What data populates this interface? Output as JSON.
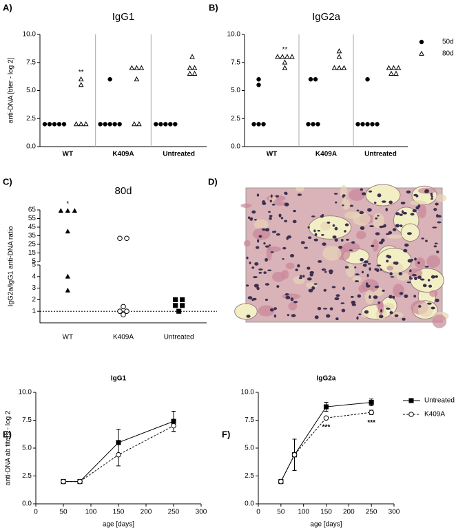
{
  "chart_data": [
    {
      "type": "dot",
      "panel_label": "A)",
      "title": "IgG1",
      "ylabel": "anti-DNA [titer - log 2]",
      "categories": [
        "WT",
        "K409A",
        "Untreated"
      ],
      "series": [
        {
          "name": "50d",
          "color": "#000000",
          "marker": "circle",
          "values": [
            [
              2,
              2,
              2,
              2,
              2
            ],
            [
              6,
              2,
              2,
              2,
              2,
              2
            ],
            [
              2,
              2,
              2,
              2,
              2
            ]
          ]
        },
        {
          "name": "80d",
          "color": "#000000",
          "marker": "triangle-open",
          "values": [
            [
              6,
              5.5,
              2,
              2,
              2
            ],
            [
              7,
              7,
              7,
              6,
              2,
              2
            ],
            [
              8,
              7,
              7,
              6.5,
              6.5
            ]
          ]
        }
      ],
      "ylim": [
        0,
        10
      ],
      "yticks": [
        {
          "value": 0,
          "label": "0.0"
        },
        {
          "value": 2.5,
          "label": "2.5"
        },
        {
          "value": 5,
          "label": "5.0"
        },
        {
          "value": 7.5,
          "label": "7.5"
        },
        {
          "value": 10,
          "label": "10.0"
        }
      ],
      "annotations": [
        {
          "text": "**",
          "category": "WT",
          "series": "80d"
        }
      ],
      "legend": false
    },
    {
      "type": "dot",
      "panel_label": "B)",
      "title": "IgG2a",
      "categories": [
        "WT",
        "K409A",
        "Untreated"
      ],
      "series": [
        {
          "name": "50d",
          "color": "#000000",
          "marker": "circle",
          "values": [
            [
              6,
              5.5,
              2,
              2,
              2
            ],
            [
              6,
              6,
              2,
              2,
              2
            ],
            [
              6,
              2,
              2,
              2,
              2,
              2
            ]
          ]
        },
        {
          "name": "80d",
          "color": "#000000",
          "marker": "triangle-open",
          "values": [
            [
              8,
              8,
              8,
              8,
              7.5,
              7
            ],
            [
              8.5,
              8,
              7,
              7,
              7
            ],
            [
              7,
              7,
              7,
              6.5,
              6.5
            ]
          ]
        }
      ],
      "ylim": [
        0,
        10
      ],
      "yticks": [
        {
          "value": 0,
          "label": "0.0"
        },
        {
          "value": 2.5,
          "label": "2.5"
        },
        {
          "value": 5,
          "label": "5.0"
        },
        {
          "value": 7.5,
          "label": "7.5"
        },
        {
          "value": 10,
          "label": "10.0"
        }
      ],
      "annotations": [
        {
          "text": "**",
          "category": "WT",
          "series": "80d"
        }
      ],
      "legend": true
    },
    {
      "type": "ratio",
      "panel_label": "C)",
      "title": "80d",
      "ylabel": "IgG2a/IgG1 anti-DNA ratio",
      "categories": [
        "WT",
        "K409A",
        "Untreated"
      ],
      "markers": [
        "triangle",
        "circle-open",
        "square"
      ],
      "color": "#000000",
      "values": [
        [
          64,
          64,
          64,
          40,
          4,
          2.8
        ],
        [
          32,
          32,
          1.4,
          1,
          1,
          0.7
        ],
        [
          2,
          2,
          1.5,
          1.5,
          1
        ]
      ],
      "ylim": [
        0,
        5
      ],
      "yticks": [
        1,
        2,
        3,
        4,
        5
      ],
      "ylim_upper": [
        5,
        65
      ],
      "yticks_upper": [
        5,
        15,
        25,
        35,
        45,
        55,
        65
      ],
      "hline": 1,
      "annotations": [
        {
          "text": "*",
          "category": "WT"
        }
      ]
    },
    {
      "type": "image",
      "panel_label": "D)"
    },
    {
      "type": "line",
      "panel_label": "E)",
      "title": "IgG1",
      "xlabel": "age [days]",
      "ylabel": "anti-DNA ab titers - log 2",
      "x": [
        50,
        80,
        150,
        250
      ],
      "series": [
        {
          "color": "#000000",
          "marker": "square",
          "dash": false,
          "values": [
            2,
            2,
            5.5,
            7.4
          ],
          "errors": [
            0,
            0,
            1.2,
            0.9
          ]
        },
        {
          "color": "#000000",
          "marker": "circle-open",
          "dash": true,
          "values": [
            2,
            2,
            4.4,
            7.0
          ],
          "errors": [
            0,
            0,
            1.0,
            0.5
          ]
        }
      ],
      "xlim": [
        0,
        300
      ],
      "xticks": [
        0,
        50,
        100,
        150,
        200,
        250,
        300
      ],
      "ylim": [
        0,
        10
      ],
      "yticks": [
        {
          "value": 0,
          "label": "0.0"
        },
        {
          "value": 2.5,
          "label": "2.5"
        },
        {
          "value": 5,
          "label": "5.0"
        },
        {
          "value": 7.5,
          "label": "7.5"
        },
        {
          "value": 10,
          "label": "10.0"
        }
      ],
      "annotations": [],
      "legend": false
    },
    {
      "type": "line",
      "panel_label": "F)",
      "title": "IgG2a",
      "xlabel": "age [days]",
      "x": [
        50,
        80,
        150,
        250
      ],
      "series": [
        {
          "name": "Untreated",
          "color": "#000000",
          "marker": "square",
          "dash": false,
          "values": [
            2,
            4.4,
            8.7,
            9.1
          ],
          "errors": [
            0,
            1.4,
            0.4,
            0.3
          ]
        },
        {
          "name": "K409A",
          "color": "#000000",
          "marker": "circle-open",
          "dash": true,
          "values": [
            2,
            4.4,
            7.7,
            8.2
          ],
          "errors": [
            0,
            1.4,
            0.1,
            0.2
          ]
        }
      ],
      "xlim": [
        0,
        300
      ],
      "xticks": [
        0,
        50,
        100,
        150,
        200,
        250,
        300
      ],
      "ylim": [
        0,
        10
      ],
      "yticks": [
        {
          "value": 0,
          "label": "0.0"
        },
        {
          "value": 2.5,
          "label": "2.5"
        },
        {
          "value": 5,
          "label": "5.0"
        },
        {
          "value": 7.5,
          "label": "7.5"
        },
        {
          "value": 10,
          "label": "10.0"
        }
      ],
      "annotations": [
        {
          "text": "***",
          "x": 150
        },
        {
          "text": "***",
          "x": 250
        }
      ],
      "legend": true
    }
  ]
}
